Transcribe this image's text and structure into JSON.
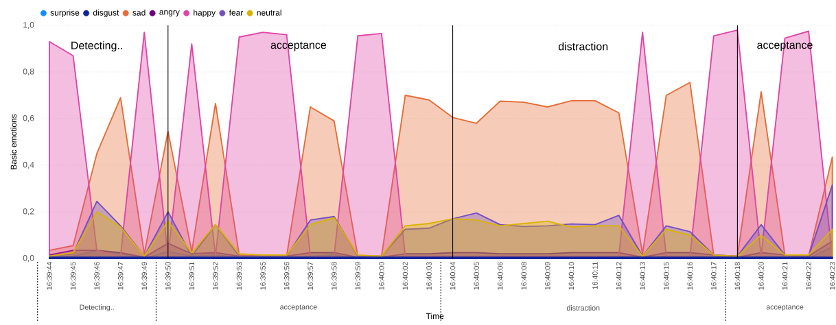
{
  "chart_data": {
    "type": "area",
    "xlabel": "Time",
    "ylabel": "Basic emotions",
    "categories": [
      "16:39:44",
      "16:39:45",
      "16:39:46",
      "16:39:47",
      "16:39:49",
      "16:39:50",
      "16:39:51",
      "16:39:52",
      "16:39:53",
      "16:39:55",
      "16:39:56",
      "16:39:57",
      "16:39:58",
      "16:39:59",
      "16:40:00",
      "16:40:02",
      "16:40:03",
      "16:40:04",
      "16:40:05",
      "16:40:06",
      "16:40:08",
      "16:40:09",
      "16:40:10",
      "16:40:11",
      "16:40:12",
      "16:40:13",
      "16:40:15",
      "16:40:16",
      "16:40:17",
      "16:40:18",
      "16:40:20",
      "16:40:21",
      "16:40:22",
      "16:40:23"
    ],
    "series": [
      {
        "name": "surprise",
        "color": "#118dff",
        "values": [
          0.005,
          0.01,
          0.035,
          0.02,
          0.0,
          0.03,
          0.01,
          0.015,
          0.005,
          0.005,
          0.005,
          0.01,
          0.015,
          0.0,
          0.0,
          0.01,
          0.01,
          0.01,
          0.01,
          0.01,
          0.01,
          0.01,
          0.01,
          0.01,
          0.01,
          0.0,
          0.01,
          0.01,
          0.005,
          0.0,
          0.01,
          0.005,
          0.0,
          0.05
        ]
      },
      {
        "name": "disgust",
        "color": "#12239e",
        "values": [
          0.005,
          0.005,
          0.005,
          0.005,
          0.005,
          0.005,
          0.005,
          0.005,
          0.005,
          0.005,
          0.005,
          0.005,
          0.005,
          0.005,
          0.005,
          0.005,
          0.005,
          0.005,
          0.005,
          0.005,
          0.005,
          0.005,
          0.005,
          0.005,
          0.005,
          0.005,
          0.005,
          0.005,
          0.005,
          0.005,
          0.005,
          0.005,
          0.005,
          0.005
        ]
      },
      {
        "name": "sad",
        "color": "#e66c37",
        "values": [
          0.035,
          0.055,
          0.45,
          0.69,
          0.02,
          0.545,
          0.03,
          0.665,
          0.015,
          0.01,
          0.01,
          0.65,
          0.59,
          0.01,
          0.01,
          0.7,
          0.68,
          0.605,
          0.58,
          0.675,
          0.67,
          0.65,
          0.677,
          0.677,
          0.625,
          0.02,
          0.7,
          0.755,
          0.015,
          0.01,
          0.715,
          0.015,
          0.01,
          0.435
        ]
      },
      {
        "name": "angry",
        "color": "#6b007b",
        "values": [
          0.015,
          0.035,
          0.035,
          0.025,
          0.005,
          0.065,
          0.02,
          0.025,
          0.01,
          0.01,
          0.01,
          0.025,
          0.025,
          0.005,
          0.005,
          0.02,
          0.02,
          0.025,
          0.025,
          0.02,
          0.02,
          0.02,
          0.025,
          0.025,
          0.025,
          0.005,
          0.025,
          0.025,
          0.015,
          0.005,
          0.025,
          0.015,
          0.01,
          0.075
        ]
      },
      {
        "name": "happy",
        "color": "#e044a7",
        "values": [
          0.93,
          0.87,
          0.035,
          0.01,
          0.97,
          0.01,
          0.92,
          0.01,
          0.95,
          0.97,
          0.96,
          0.01,
          0.01,
          0.955,
          0.965,
          0.01,
          0.01,
          0.01,
          0.01,
          0.01,
          0.01,
          0.01,
          0.01,
          0.01,
          0.01,
          0.97,
          0.01,
          0.01,
          0.955,
          0.98,
          0.01,
          0.945,
          0.975,
          0.0
        ]
      },
      {
        "name": "fear",
        "color": "#744ec2",
        "values": [
          0.01,
          0.02,
          0.245,
          0.14,
          0.01,
          0.2,
          0.01,
          0.145,
          0.01,
          0.01,
          0.01,
          0.165,
          0.18,
          0.01,
          0.01,
          0.125,
          0.13,
          0.17,
          0.195,
          0.145,
          0.137,
          0.14,
          0.148,
          0.145,
          0.185,
          0.01,
          0.14,
          0.115,
          0.015,
          0.01,
          0.145,
          0.015,
          0.01,
          0.315
        ]
      },
      {
        "name": "neutral",
        "color": "#d9b300",
        "values": [
          0.01,
          0.025,
          0.2,
          0.135,
          0.01,
          0.16,
          0.025,
          0.145,
          0.02,
          0.015,
          0.015,
          0.145,
          0.175,
          0.015,
          0.01,
          0.14,
          0.15,
          0.17,
          0.165,
          0.14,
          0.15,
          0.16,
          0.135,
          0.14,
          0.14,
          0.01,
          0.125,
          0.1,
          0.015,
          0.01,
          0.1,
          0.015,
          0.015,
          0.125
        ]
      }
    ],
    "ylim": [
      0,
      1
    ],
    "yticks": [
      {
        "value": 0,
        "label": "0,0"
      },
      {
        "value": 0.2,
        "label": "0,2"
      },
      {
        "value": 0.4,
        "label": "0,4"
      },
      {
        "value": 0.6,
        "label": "0,6"
      },
      {
        "value": 0.8,
        "label": "0,8"
      },
      {
        "value": 1,
        "label": "1,0"
      }
    ],
    "grid": "y",
    "legend": "top left",
    "ref_lines": [
      {
        "axis": "x",
        "value": "16:39:50",
        "color": "#000000"
      },
      {
        "axis": "x",
        "value": "16:40:04",
        "color": "#000000"
      },
      {
        "axis": "x",
        "value": "16:40:18",
        "color": "#000000"
      }
    ],
    "annotations": [
      "Detecting..",
      "acceptance",
      "distraction",
      "acceptance",
      "Detecting..",
      "acceptance",
      "distraction",
      "acceptance"
    ]
  }
}
